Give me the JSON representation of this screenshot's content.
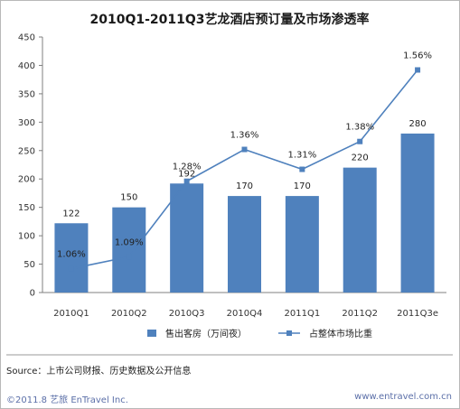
{
  "chart_data": {
    "type": "bar+line",
    "title": "2010Q1-2011Q3艺龙酒店预订量及市场渗透率",
    "categories": [
      "2010Q1",
      "2010Q2",
      "2010Q3",
      "2010Q4",
      "2011Q1",
      "2011Q2",
      "2011Q3e"
    ],
    "series": [
      {
        "name": "售出客房（万间夜）",
        "type": "bar",
        "values": [
          122,
          150,
          192,
          170,
          170,
          220,
          280
        ],
        "labels": [
          "122",
          "150",
          "192",
          "170",
          "170",
          "220",
          "280"
        ],
        "color": "#4f81bd"
      },
      {
        "name": "占整体市场比重",
        "type": "line",
        "values": [
          1.06,
          1.09,
          1.28,
          1.36,
          1.31,
          1.38,
          1.56
        ],
        "labels": [
          "1.06%",
          "1.09%",
          "1.28%",
          "1.36%",
          "1.31%",
          "1.38%",
          "1.56%"
        ],
        "color": "#4f81bd"
      }
    ],
    "ylim": [
      0,
      450
    ],
    "yticks": [
      "0",
      "50",
      "100",
      "150",
      "200",
      "250",
      "300",
      "350",
      "400",
      "450"
    ],
    "grid": false,
    "legend_position": "bottom"
  },
  "source": "Source：上市公司财报、历史数据及公开信息",
  "footer": {
    "copyright": "©2011.8 艺旅 EnTravel Inc.",
    "url": "www.entravel.com.cn"
  }
}
